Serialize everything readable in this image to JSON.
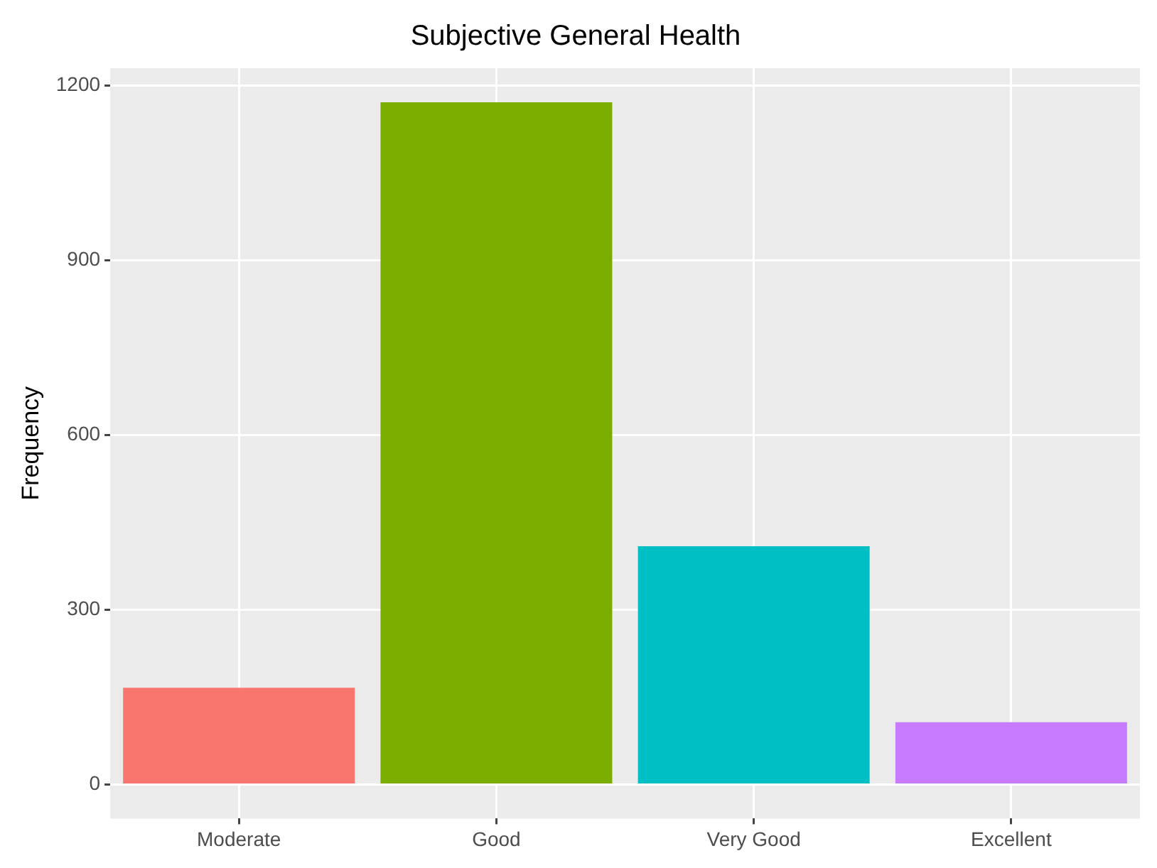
{
  "chart_data": {
    "type": "bar",
    "title": "Subjective General Health",
    "ylabel": "Frequency",
    "categories": [
      "Moderate",
      "Good",
      "Very Good",
      "Excellent"
    ],
    "values": [
      166,
      1171,
      409,
      107
    ],
    "colors": [
      "#f8766d",
      "#7cae00",
      "#00bfc4",
      "#c77cff"
    ],
    "ylim": [
      -58.5,
      1229.5
    ],
    "yticks": [
      0,
      300,
      600,
      900,
      1200
    ],
    "grid": true,
    "legend": false
  }
}
